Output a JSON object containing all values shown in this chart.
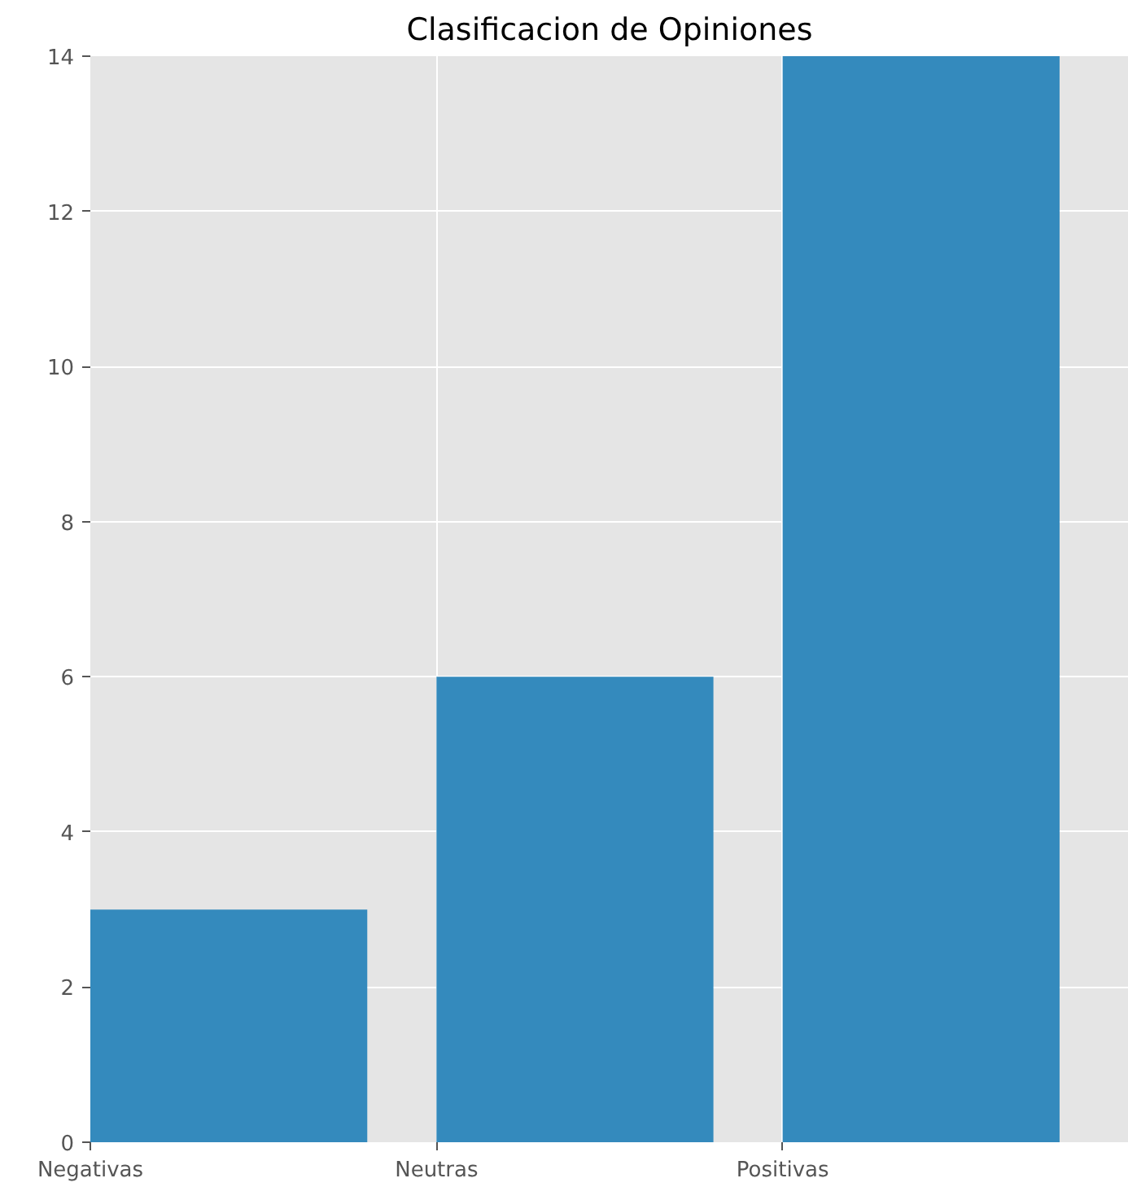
{
  "chart_data": {
    "type": "bar",
    "title": "Clasificacion de Opiniones",
    "categories": [
      "Negativas",
      "Neutras",
      "Positivas"
    ],
    "values": [
      3,
      6,
      14
    ],
    "color": "#348abd",
    "ylim": [
      0,
      14
    ],
    "yticks": [
      0,
      2,
      4,
      6,
      8,
      10,
      12,
      14
    ],
    "grid": true
  }
}
